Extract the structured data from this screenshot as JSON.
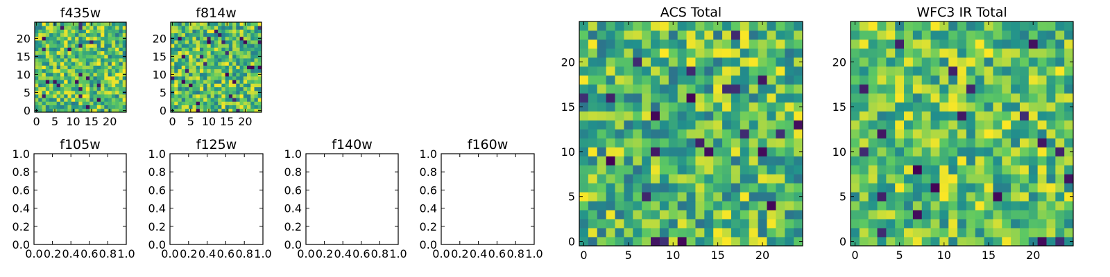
{
  "figure": {
    "colormap": "viridis",
    "colors": {
      "viridis_stops": [
        "#440154",
        "#3b528b",
        "#21918c",
        "#5ec962",
        "#fde725"
      ],
      "axes_edge": "#000000",
      "background": "#ffffff"
    }
  },
  "chart_data": [
    {
      "id": "f435w",
      "type": "heatmap",
      "title": "f435w",
      "xlim": [
        -0.5,
        24.5
      ],
      "ylim": [
        -0.5,
        24.5
      ],
      "xticks": [
        0,
        5,
        10,
        15,
        20
      ],
      "yticks": [
        0,
        5,
        10,
        15,
        20
      ],
      "grid_size": [
        25,
        25
      ],
      "seed": 11,
      "value_range": [
        0,
        1
      ],
      "value_bias": 0.62,
      "grid": false
    },
    {
      "id": "f814w",
      "type": "heatmap",
      "title": "f814w",
      "xlim": [
        -0.5,
        24.5
      ],
      "ylim": [
        -0.5,
        24.5
      ],
      "xticks": [
        0,
        5,
        10,
        15,
        20
      ],
      "yticks": [
        0,
        5,
        10,
        15,
        20
      ],
      "grid_size": [
        25,
        25
      ],
      "seed": 29,
      "value_range": [
        0,
        1
      ],
      "value_bias": 0.62,
      "grid": false
    },
    {
      "id": "f105w",
      "type": "heatmap",
      "title": "f105w",
      "empty": true,
      "xlim": [
        0,
        1
      ],
      "ylim": [
        0,
        1
      ],
      "xticks": [
        "0.0",
        "0.2",
        "0.4",
        "0.6",
        "0.8",
        "1.0"
      ],
      "yticks": [
        "0.0",
        "0.2",
        "0.4",
        "0.6",
        "0.8",
        "1.0"
      ],
      "grid": false
    },
    {
      "id": "f125w",
      "type": "heatmap",
      "title": "f125w",
      "empty": true,
      "xlim": [
        0,
        1
      ],
      "ylim": [
        0,
        1
      ],
      "xticks": [
        "0.0",
        "0.2",
        "0.4",
        "0.6",
        "0.8",
        "1.0"
      ],
      "yticks": [
        "0.0",
        "0.2",
        "0.4",
        "0.6",
        "0.8",
        "1.0"
      ],
      "grid": false
    },
    {
      "id": "f140w",
      "type": "heatmap",
      "title": "f140w",
      "empty": true,
      "xlim": [
        0,
        1
      ],
      "ylim": [
        0,
        1
      ],
      "xticks": [
        "0.0",
        "0.2",
        "0.4",
        "0.6",
        "0.8",
        "1.0"
      ],
      "yticks": [
        "0.0",
        "0.2",
        "0.4",
        "0.6",
        "0.8",
        "1.0"
      ],
      "grid": false
    },
    {
      "id": "f160w",
      "type": "heatmap",
      "title": "f160w",
      "empty": true,
      "xlim": [
        0,
        1
      ],
      "ylim": [
        0,
        1
      ],
      "xticks": [
        "0.0",
        "0.2",
        "0.4",
        "0.6",
        "0.8",
        "1.0"
      ],
      "yticks": [
        "0.0",
        "0.2",
        "0.4",
        "0.6",
        "0.8",
        "1.0"
      ],
      "grid": false
    },
    {
      "id": "acs-total",
      "type": "heatmap",
      "title": "ACS Total",
      "xlim": [
        -0.5,
        24.5
      ],
      "ylim": [
        -0.5,
        24.5
      ],
      "xticks": [
        0,
        5,
        10,
        15,
        20
      ],
      "yticks": [
        0,
        5,
        10,
        15,
        20
      ],
      "grid_size": [
        25,
        25
      ],
      "seed": 47,
      "value_range": [
        0,
        1
      ],
      "value_bias": 0.58,
      "grid": false
    },
    {
      "id": "wfc3-ir-total",
      "type": "heatmap",
      "title": "WFC3 IR Total",
      "xlim": [
        -0.5,
        24.5
      ],
      "ylim": [
        -0.5,
        24.5
      ],
      "xticks": [
        0,
        5,
        10,
        15,
        20
      ],
      "yticks": [
        0,
        5,
        10,
        15,
        20
      ],
      "grid_size": [
        25,
        25
      ],
      "seed": 83,
      "value_range": [
        0,
        1
      ],
      "value_bias": 0.66,
      "grid": false
    }
  ]
}
